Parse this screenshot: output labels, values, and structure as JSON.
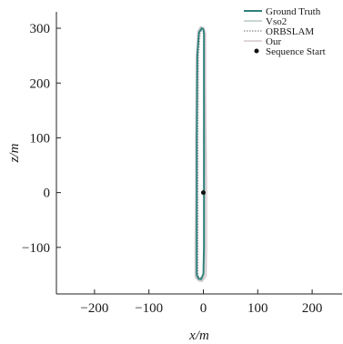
{
  "chart_data": {
    "type": "line",
    "title": "",
    "xlabel": "x/m",
    "ylabel": "z/m",
    "xlim": [
      -270,
      255
    ],
    "ylim": [
      -185,
      330
    ],
    "x_ticks": [
      -200,
      -100,
      0,
      100,
      200
    ],
    "y_ticks": [
      -100,
      0,
      100,
      200,
      300
    ],
    "x_tick_labels": [
      "−200",
      "−100",
      "0",
      "100",
      "200"
    ],
    "y_tick_labels": [
      "−100",
      "0",
      "100",
      "200",
      "300"
    ],
    "grid": false,
    "legend_position": "top-right",
    "series": [
      {
        "name": "Ground Truth",
        "color": "#2e7f7a",
        "style": "solid",
        "x": [
          -12,
          -12,
          -12,
          -12,
          -11,
          -8,
          -3,
          0,
          1,
          1,
          1,
          1,
          1,
          0,
          -4,
          -9,
          -12
        ],
        "y": [
          -150,
          -100,
          0,
          100,
          250,
          292,
          300,
          298,
          290,
          200,
          100,
          0,
          -100,
          -148,
          -158,
          -157,
          -150
        ]
      },
      {
        "name": "Vso2",
        "color": "#b9c8c2",
        "style": "solid",
        "x": [
          -14,
          -14,
          -13,
          -13,
          -12,
          -9,
          -4,
          0,
          2,
          2,
          3,
          3,
          3,
          2,
          -3,
          -9,
          -14
        ],
        "y": [
          -152,
          -100,
          0,
          100,
          250,
          294,
          302,
          300,
          290,
          200,
          100,
          0,
          -100,
          -150,
          -160,
          -159,
          -152
        ]
      },
      {
        "name": "ORBSLAM",
        "color": "#9a9a9a",
        "style": "dotted",
        "x": [
          -10,
          -10,
          -10,
          -10,
          -9,
          -6,
          -2,
          1,
          2,
          2,
          2,
          2,
          2,
          1,
          -3,
          -8,
          -10
        ],
        "y": [
          -149,
          -100,
          0,
          100,
          250,
          291,
          299,
          297,
          289,
          200,
          100,
          0,
          -100,
          -147,
          -156,
          -155,
          -149
        ]
      },
      {
        "name": "Our",
        "color": "#d3c9cf",
        "style": "solid",
        "x": [
          -15,
          -15,
          -14,
          -14,
          -13,
          -10,
          -5,
          1,
          4,
          4,
          5,
          6,
          6,
          5,
          -2,
          -9,
          -15
        ],
        "y": [
          -154,
          -100,
          0,
          100,
          250,
          295,
          303,
          301,
          291,
          200,
          100,
          0,
          -100,
          -152,
          -162,
          -161,
          -154
        ]
      }
    ],
    "markers": [
      {
        "name": "Sequence Start",
        "x": 0,
        "y": 0,
        "color": "#111111"
      }
    ]
  }
}
